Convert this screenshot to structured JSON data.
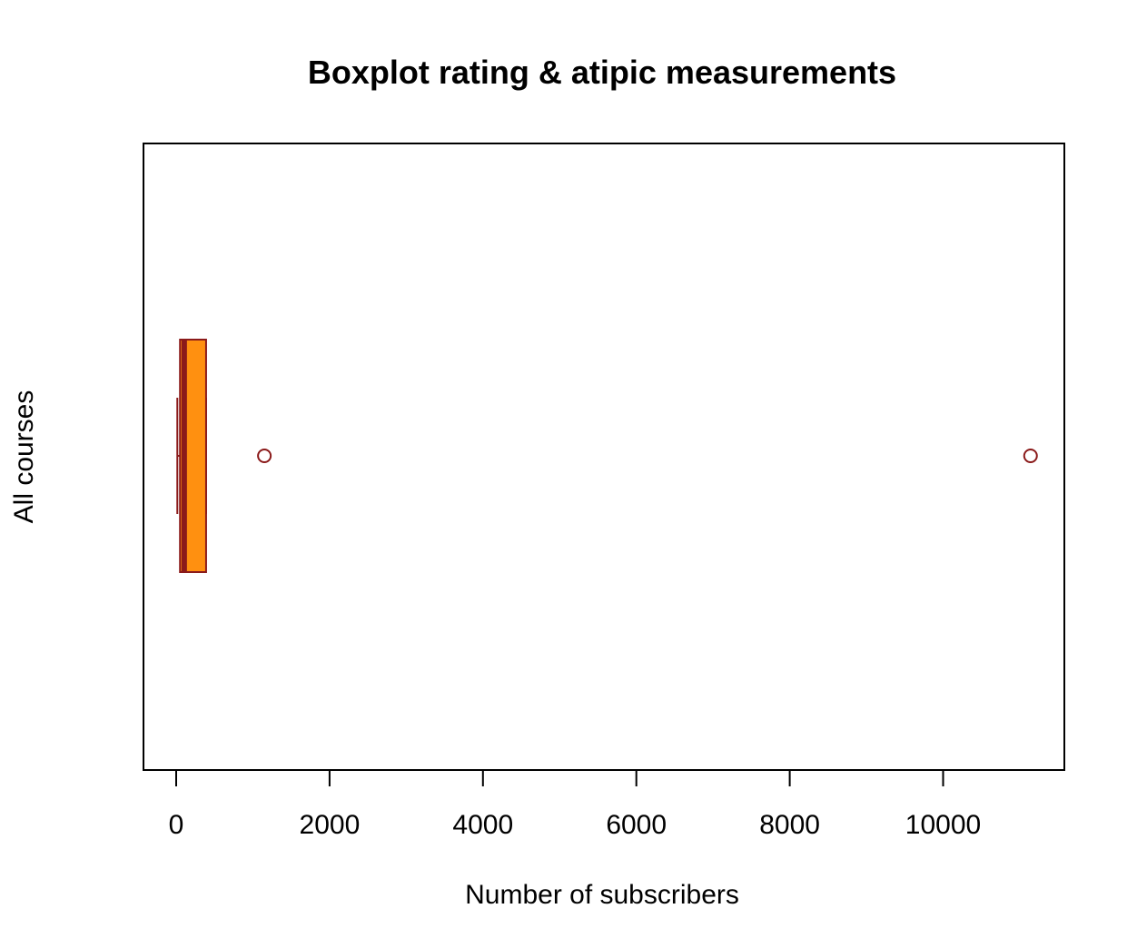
{
  "chart_data": {
    "type": "boxplot",
    "orientation": "horizontal",
    "title": "Boxplot rating & atipic measurements",
    "xlabel": "Number of subscribers",
    "ylabel": "All courses",
    "xlim": [
      -200,
      11550
    ],
    "x_ticks": [
      0,
      2000,
      4000,
      6000,
      8000,
      10000
    ],
    "x_tick_labels": [
      "0",
      "2000",
      "4000",
      "6000",
      "8000",
      "10000"
    ],
    "grid": false,
    "legend": "none",
    "series": [
      {
        "whisker_low": 15,
        "q1": 50,
        "median": 105,
        "q3": 390,
        "whisker_high": 390,
        "outliers": [
          1150,
          11140
        ]
      }
    ],
    "colors": {
      "box_fill": "#FF9010",
      "border": "#8B1A1A",
      "outlier": "#8B1A1A",
      "frame": "#000000"
    }
  }
}
